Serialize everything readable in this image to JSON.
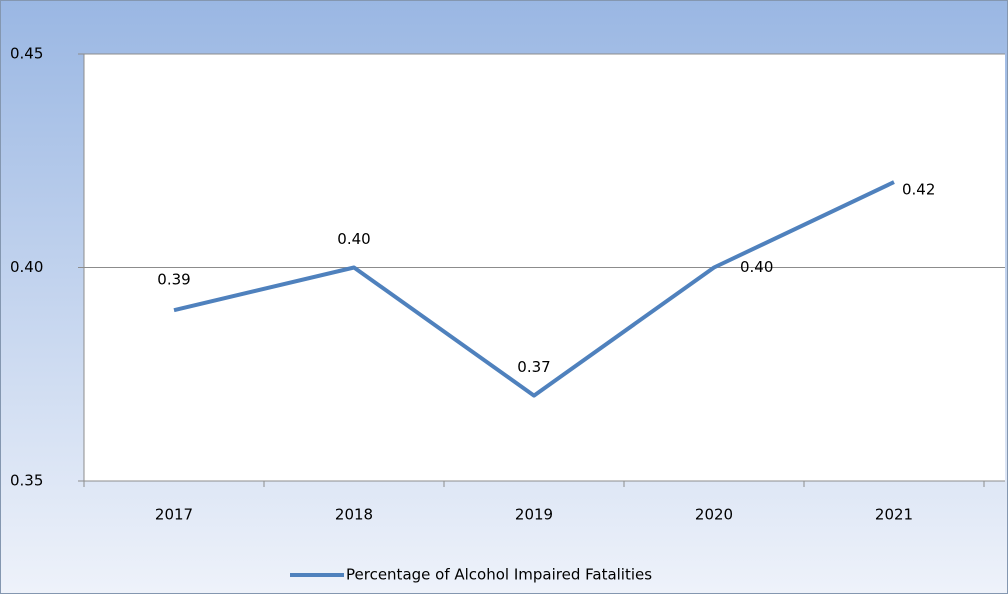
{
  "chart_data": {
    "type": "line",
    "categories": [
      "2017",
      "2018",
      "2019",
      "2020",
      "2021"
    ],
    "series": [
      {
        "name": "Percentage of Alcohol Impaired Fatalities",
        "color": "#4f81bd",
        "values": [
          0.39,
          0.4,
          0.37,
          0.4,
          0.42
        ],
        "value_labels": [
          "0.39",
          "0.40",
          "0.37",
          "0.40",
          "0.42"
        ]
      }
    ],
    "ylim": [
      0.35,
      0.45
    ],
    "yticks": [
      0.35,
      {
        "value": 0.4,
        "label": "0.40"
      },
      0.45
    ],
    "grid": true,
    "legend": "bottom"
  }
}
